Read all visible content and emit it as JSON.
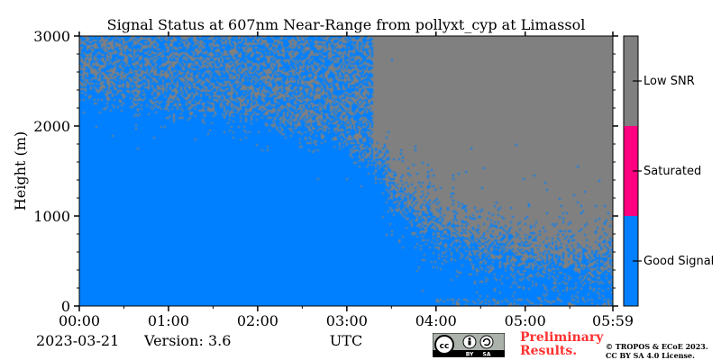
{
  "chart_data": {
    "type": "heatmap",
    "title": "Signal Status at 607nm Near-Range from pollyxt_cyp at Limassol",
    "xlabel": "UTC",
    "ylabel": "Height (m)",
    "x_ticks": [
      "00:00",
      "01:00",
      "02:00",
      "03:00",
      "04:00",
      "05:00",
      "05:59"
    ],
    "x_range_hours": [
      0,
      5.983
    ],
    "y_ticks": [
      "0",
      "1000",
      "2000",
      "3000"
    ],
    "ylim": [
      0,
      3000
    ],
    "colorbar": {
      "categories": [
        {
          "label": "Good Signal",
          "color": "#0080ff"
        },
        {
          "label": "Saturated",
          "color": "#ff0080"
        },
        {
          "label": "Low SNR",
          "color": "#808080"
        }
      ]
    },
    "good_signal_upper_height_m": [
      {
        "time_h": 0.0,
        "height_m": 2500
      },
      {
        "time_h": 1.0,
        "height_m": 2300
      },
      {
        "time_h": 2.0,
        "height_m": 2200
      },
      {
        "time_h": 3.0,
        "height_m": 1900
      },
      {
        "time_h": 3.3,
        "height_m": 1700
      },
      {
        "time_h": 3.5,
        "height_m": 1300
      },
      {
        "time_h": 4.0,
        "height_m": 900
      },
      {
        "time_h": 4.5,
        "height_m": 650
      },
      {
        "time_h": 5.0,
        "height_m": 550
      },
      {
        "time_h": 5.983,
        "height_m": 450
      }
    ]
  },
  "footer": {
    "date": "2023-03-21",
    "version": "Version: 3.6",
    "preliminary_line1": "Preliminary",
    "preliminary_line2": "Results.",
    "copyright_line1": "© TROPOS & ECoE 2023.",
    "copyright_line2": "CC BY SA 4.0 License."
  },
  "license_badge": {
    "icon": "cc-by-sa-icon",
    "texts": [
      "BY",
      "SA"
    ]
  }
}
